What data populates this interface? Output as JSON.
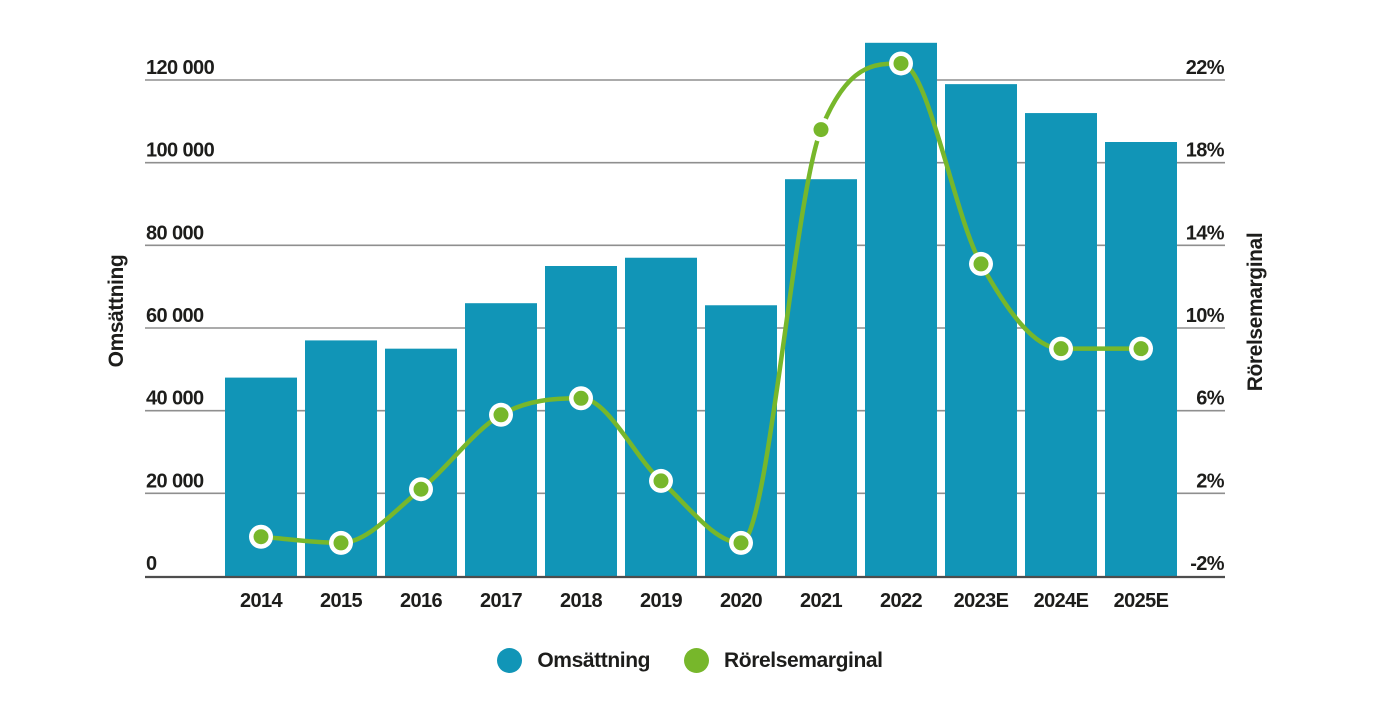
{
  "colors": {
    "bar": "#1195b7",
    "line": "#77b72b",
    "grid": "#8f8f8f",
    "baseline": "#4d4d4d",
    "text": "#1d1d1b",
    "background": "#ffffff",
    "dot_ring": "#ffffff"
  },
  "chart_data": {
    "type": "bar",
    "categories": [
      "2014",
      "2015",
      "2016",
      "2017",
      "2018",
      "2019",
      "2020",
      "2021",
      "2022",
      "2023E",
      "2024E",
      "2025E"
    ],
    "series": [
      {
        "name": "Omsättning",
        "type": "bar",
        "axis": "left",
        "color": "#1195b7",
        "values": [
          48000,
          57000,
          55000,
          66000,
          75000,
          77000,
          65500,
          96000,
          129000,
          119000,
          112000,
          105000
        ]
      },
      {
        "name": "Rörelsemarginal",
        "type": "line",
        "axis": "right",
        "color": "#77b72b",
        "values": [
          -0.1,
          -0.4,
          2.2,
          5.8,
          6.6,
          2.6,
          -0.4,
          19.6,
          22.8,
          13.1,
          9.0,
          9.0
        ]
      }
    ],
    "left_axis": {
      "title": "Omsättning",
      "tick_labels": [
        "0",
        "20 000",
        "40 000",
        "60 000",
        "80 000",
        "100 000",
        "120 000"
      ],
      "tick_values": [
        0,
        20000,
        40000,
        60000,
        80000,
        100000,
        120000
      ],
      "range": [
        0,
        120000
      ]
    },
    "right_axis": {
      "title": "Rörelsemarginal",
      "tick_labels": [
        "-2%",
        "2%",
        "6%",
        "10%",
        "14%",
        "18%",
        "22%"
      ],
      "tick_values": [
        -2,
        2,
        6,
        10,
        14,
        18,
        22
      ],
      "range": [
        -2,
        22
      ]
    },
    "legend": {
      "position": "bottom",
      "items": [
        {
          "label": "Omsättning",
          "color": "#1195b7",
          "marker": "circle"
        },
        {
          "label": "Rörelsemarginal",
          "color": "#77b72b",
          "marker": "circle"
        }
      ]
    },
    "grid": "horizontal only",
    "background": "white"
  }
}
